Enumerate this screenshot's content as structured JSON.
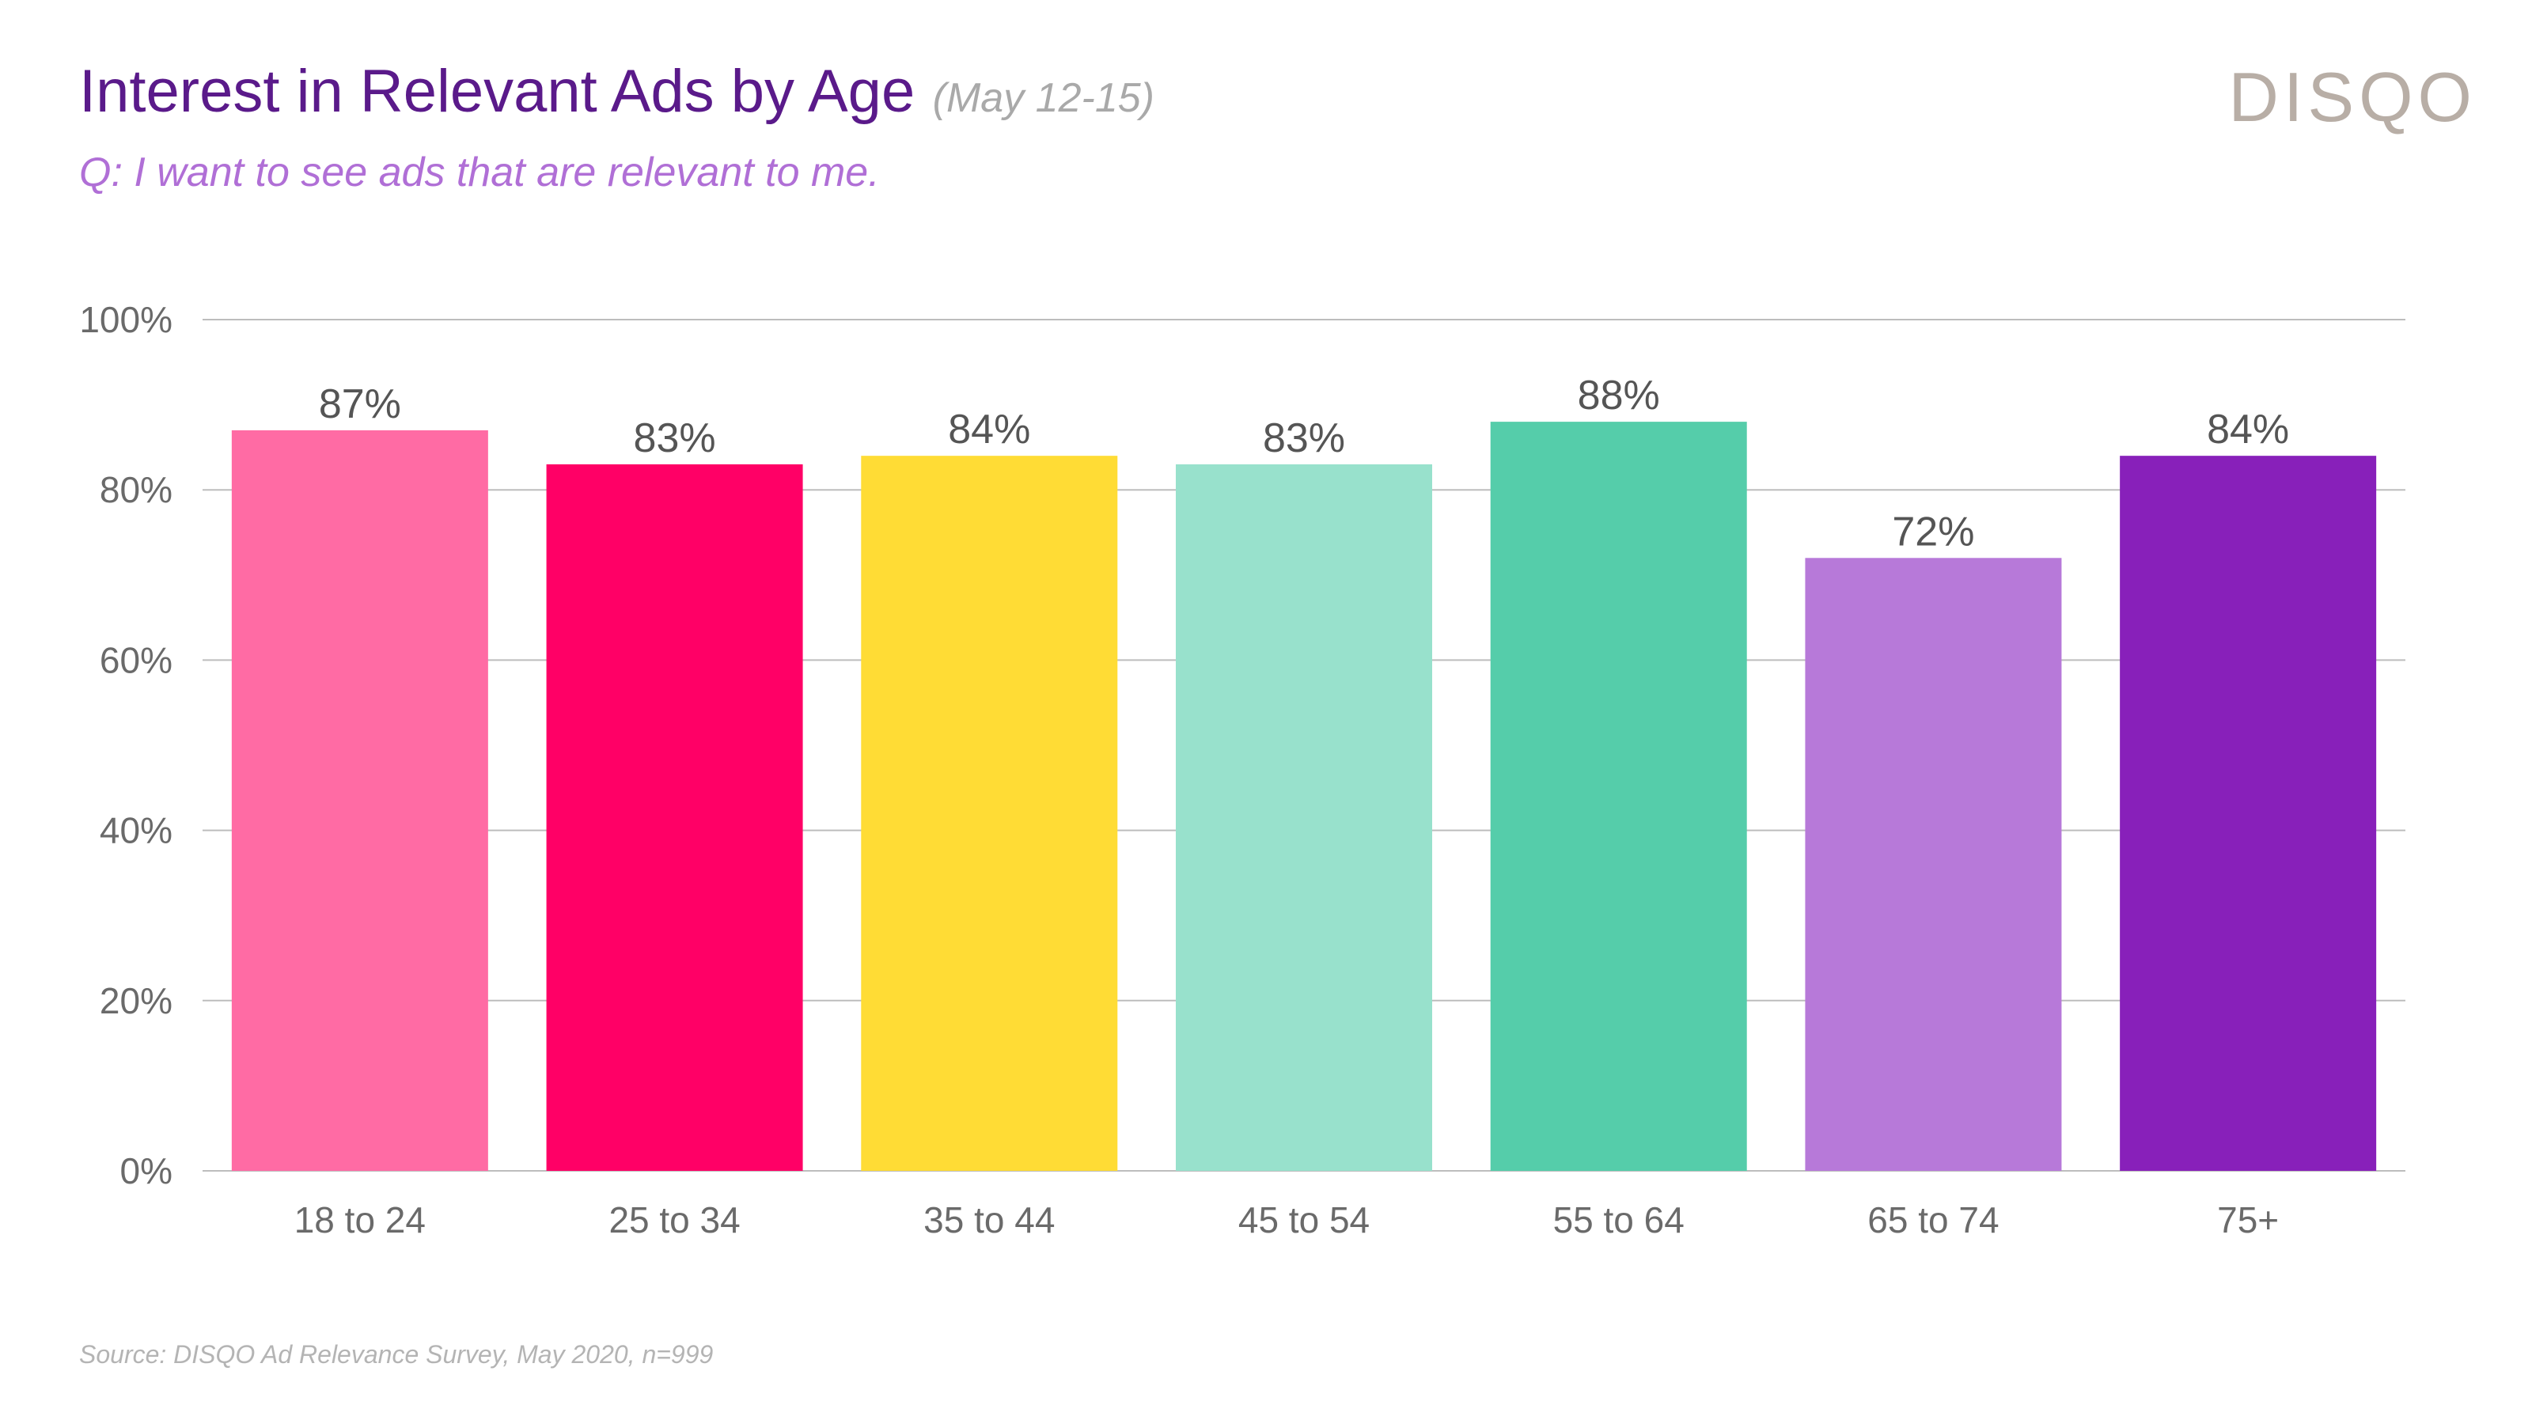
{
  "header": {
    "title": "Interest in Relevant Ads by Age",
    "date_range": "(May 12-15)",
    "question": "Q: I want to see ads that are relevant to me.",
    "logo": "DISQO"
  },
  "footer": {
    "source": "Source: DISQO Ad Relevance Survey, May 2020, n=999"
  },
  "chart_data": {
    "type": "bar",
    "title": "Interest in Relevant Ads by Age",
    "xlabel": "",
    "ylabel": "",
    "ylim": [
      0,
      100
    ],
    "grid": true,
    "yticks": [
      "0%",
      "20%",
      "40%",
      "60%",
      "80%",
      "100%"
    ],
    "ytick_values": [
      0,
      20,
      40,
      60,
      80,
      100
    ],
    "categories": [
      "18 to 24",
      "25 to 34",
      "35 to 44",
      "45 to 54",
      "55 to 64",
      "65 to 74",
      "75+"
    ],
    "values": [
      87,
      83,
      84,
      83,
      88,
      72,
      84
    ],
    "value_labels": [
      "87%",
      "83%",
      "84%",
      "83%",
      "88%",
      "72%",
      "84%"
    ],
    "colors": [
      "#ff6ba4",
      "#ff0066",
      "#ffdc35",
      "#98e1cc",
      "#55cdaa",
      "#b779d9",
      "#8820ba"
    ]
  },
  "colors": {
    "title": "#5a1a8a",
    "question": "#b06fd6",
    "gridline": "#bdbdbd",
    "logo": "#b8aea6"
  }
}
